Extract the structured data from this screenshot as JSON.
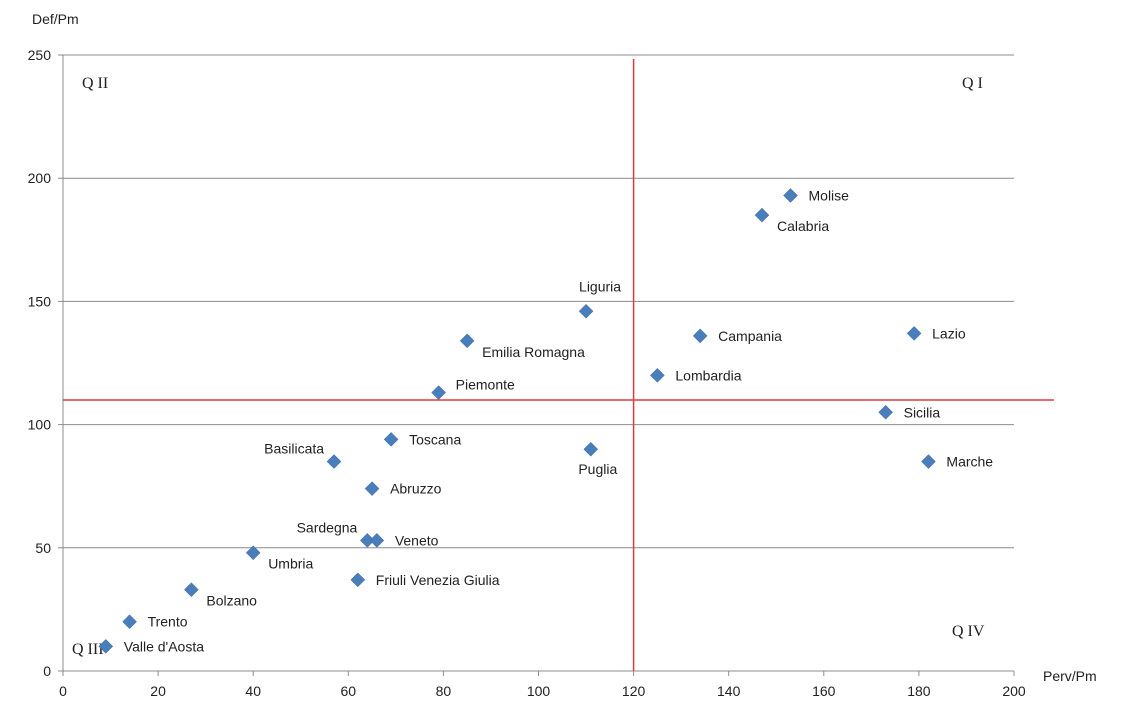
{
  "chart_data": {
    "type": "scatter",
    "ylabel": "Def/Pm",
    "xlabel": "Perv/Pm",
    "xlim": [
      0,
      200
    ],
    "ylim": [
      0,
      250
    ],
    "x_ticks": [
      "0",
      "20",
      "40",
      "60",
      "80",
      "100",
      "120",
      "140",
      "160",
      "180",
      "200"
    ],
    "y_ticks": [
      "0",
      "50",
      "100",
      "150",
      "200",
      "250"
    ],
    "grid": "horizontal",
    "reference_lines": {
      "x": 120,
      "y": 110,
      "color": "#e03c3c"
    },
    "quadrants": {
      "q1": "Q I",
      "q2": "Q II",
      "q3": "Q III",
      "q4": "Q IV"
    },
    "marker_color": "#4a7ebb",
    "points": [
      {
        "name": "Molise",
        "x": 153,
        "y": 193,
        "label_pos": "right"
      },
      {
        "name": "Calabria",
        "x": 147,
        "y": 185,
        "label_pos": "below-right"
      },
      {
        "name": "Liguria",
        "x": 110,
        "y": 146,
        "label_pos": "above"
      },
      {
        "name": "Emilia Romagna",
        "x": 85,
        "y": 134,
        "label_pos": "below-right"
      },
      {
        "name": "Campania",
        "x": 134,
        "y": 136,
        "label_pos": "right"
      },
      {
        "name": "Lazio",
        "x": 179,
        "y": 137,
        "label_pos": "right"
      },
      {
        "name": "Lombardia",
        "x": 125,
        "y": 120,
        "label_pos": "right"
      },
      {
        "name": "Piemonte",
        "x": 79,
        "y": 113,
        "label_pos": "above-right"
      },
      {
        "name": "Sicilia",
        "x": 173,
        "y": 105,
        "label_pos": "right"
      },
      {
        "name": "Toscana",
        "x": 69,
        "y": 94,
        "label_pos": "right"
      },
      {
        "name": "Puglia",
        "x": 111,
        "y": 90,
        "label_pos": "below"
      },
      {
        "name": "Basilicata",
        "x": 57,
        "y": 85,
        "label_pos": "above-left"
      },
      {
        "name": "Marche",
        "x": 182,
        "y": 85,
        "label_pos": "right"
      },
      {
        "name": "Abruzzo",
        "x": 65,
        "y": 74,
        "label_pos": "right"
      },
      {
        "name": "Sardegna",
        "x": 64,
        "y": 53,
        "label_pos": "above-left"
      },
      {
        "name": "Veneto",
        "x": 66,
        "y": 53,
        "label_pos": "right"
      },
      {
        "name": "Umbria",
        "x": 40,
        "y": 48,
        "label_pos": "below-right"
      },
      {
        "name": "Friuli Venezia Giulia",
        "x": 62,
        "y": 37,
        "label_pos": "right"
      },
      {
        "name": "Bolzano",
        "x": 27,
        "y": 33,
        "label_pos": "below-right"
      },
      {
        "name": "Trento",
        "x": 14,
        "y": 20,
        "label_pos": "right"
      },
      {
        "name": "Valle d'Aosta",
        "x": 9,
        "y": 10,
        "label_pos": "right"
      }
    ]
  }
}
